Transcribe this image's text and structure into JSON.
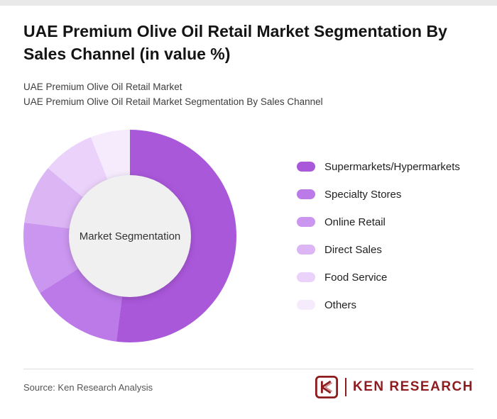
{
  "header": {
    "title": "UAE Premium Olive Oil Retail Market Segmentation By Sales Channel (in value %)",
    "subtitle1": "UAE Premium Olive Oil Retail Market",
    "subtitle2": "UAE Premium Olive Oil Retail Market Segmentation By Sales Channel"
  },
  "chart_data": {
    "type": "pie",
    "variant": "donut",
    "title": "UAE Premium Olive Oil Retail Market Segmentation By Sales Channel (in value %)",
    "center_label": "Market Segmentation",
    "unit": "value %",
    "legend_position": "right",
    "start_angle_deg": 0,
    "direction": "clockwise",
    "categories": [
      "Supermarkets/Hypermarkets",
      "Specialty Stores",
      "Online Retail",
      "Direct Sales",
      "Food Service",
      "Others"
    ],
    "values": [
      52,
      14,
      11,
      9,
      8,
      6
    ],
    "colors": [
      "#aa58da",
      "#bb7ae8",
      "#cb96ef",
      "#dcb5f5",
      "#ebd2fa",
      "#f6ebfd"
    ],
    "center_fill": "#f0f0f0"
  },
  "footer": {
    "source": "Source: Ken Research Analysis",
    "brand": "KEN RESEARCH",
    "brand_color": "#8e1b1e"
  }
}
